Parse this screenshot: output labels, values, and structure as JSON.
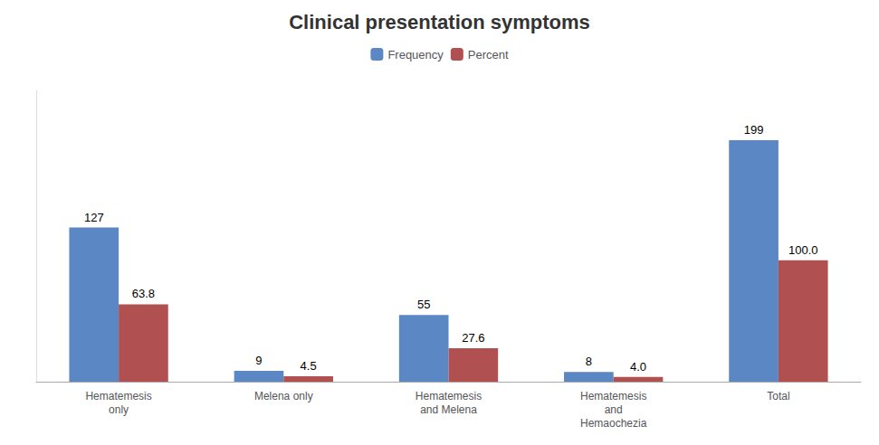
{
  "chart_data": {
    "type": "bar",
    "title": "Clinical presentation symptoms",
    "categories": [
      "Hematemesis\nonly",
      "Melena only",
      "Hematemesis\nand Melena",
      "Hematemesis\nand\nHemaochezia",
      "Total"
    ],
    "series": [
      {
        "name": "Frequency",
        "color": "#5B87C5",
        "values": [
          127,
          9,
          55,
          8,
          199
        ]
      },
      {
        "name": "Percent",
        "color": "#B05050",
        "values": [
          63.8,
          4.5,
          27.6,
          4.0,
          100.0
        ],
        "value_labels": [
          "63.8",
          "4.5",
          "27.6",
          "4.0",
          "100.0"
        ]
      }
    ],
    "ylim": [
      0,
      240
    ],
    "grid": false,
    "legend": "top",
    "data_labels": true,
    "tick_labels": "x"
  }
}
